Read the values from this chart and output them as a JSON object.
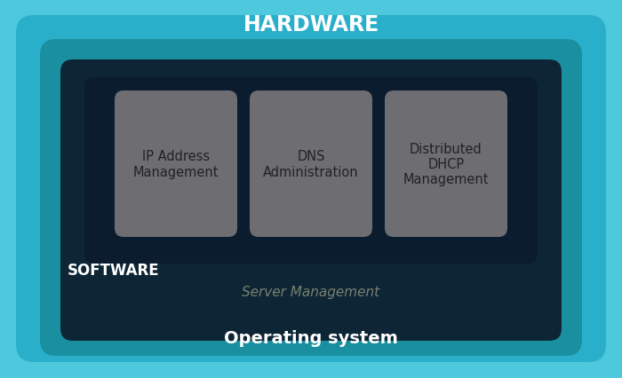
{
  "title_hardware": "HARDWARE",
  "title_os": "Operating system",
  "title_software": "SOFTWARE",
  "title_server": "Server Management",
  "boxes": [
    {
      "label": "IP Address\nManagement"
    },
    {
      "label": "DNS\nAdministration"
    },
    {
      "label": "Distributed\nDHCP\nManagement"
    }
  ],
  "color_outermost": "#4DC8DC",
  "color_layer2": "#2AAFCA",
  "color_layer3": "#1A8FA0",
  "color_dark_outer": "#0D2535",
  "color_dark_inner": "#0A1C2E",
  "color_box": "#6E6E72",
  "color_hardware_text": "#FFFFFF",
  "color_os_text": "#FFFFFF",
  "color_software_text": "#FFFFFF",
  "color_server_text": "#7A8070",
  "color_box_text": "#222222",
  "figsize": [
    7.0,
    4.27
  ],
  "dpi": 100
}
